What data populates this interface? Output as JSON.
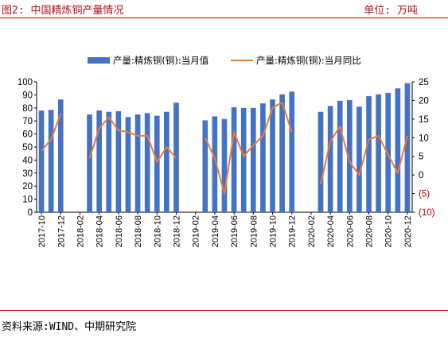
{
  "header": {
    "title": "图2: 中国精炼铜产量情况",
    "unit": "单位: 万吨"
  },
  "footer": {
    "source": "资料来源:WIND、中期研究院"
  },
  "colors": {
    "bar": "#4472c4",
    "line": "#ed7d31",
    "negative_tick": "#c00000",
    "rule": "#c00000"
  },
  "chart_data": {
    "type": "bar",
    "title": "",
    "xlabel": "",
    "ylabel": "",
    "legend_position": "top",
    "grid": false,
    "categories": [
      "2017-10",
      "2017-11",
      "2017-12",
      "2018-01",
      "2018-02",
      "2018-03",
      "2018-04",
      "2018-05",
      "2018-06",
      "2018-07",
      "2018-08",
      "2018-09",
      "2018-10",
      "2018-11",
      "2018-12",
      "2019-01",
      "2019-02",
      "2019-03",
      "2019-04",
      "2019-05",
      "2019-06",
      "2019-07",
      "2019-08",
      "2019-09",
      "2019-10",
      "2019-11",
      "2019-12",
      "2020-01",
      "2020-02",
      "2020-03",
      "2020-04",
      "2020-05",
      "2020-06",
      "2020-07",
      "2020-08",
      "2020-09",
      "2020-10",
      "2020-11",
      "2020-12"
    ],
    "x_tick_labels": [
      "2017-10",
      "2017-12",
      "2018-02",
      "2018-04",
      "2018-06",
      "2018-08",
      "2018-10",
      "2018-12",
      "2019-02",
      "2019-04",
      "2019-06",
      "2019-08",
      "2019-10",
      "2019-12",
      "2020-02",
      "2020-04",
      "2020-06",
      "2020-08",
      "2020-10",
      "2020-12"
    ],
    "y_left": {
      "ylim": [
        0,
        100
      ],
      "ticks": [
        "0",
        "10",
        "20",
        "30",
        "40",
        "50",
        "60",
        "70",
        "80",
        "90",
        "100"
      ]
    },
    "y_right": {
      "ylim": [
        -10,
        25
      ],
      "ticks": [
        {
          "value": 25,
          "label": "25"
        },
        {
          "value": 20,
          "label": "20"
        },
        {
          "value": 15,
          "label": "15"
        },
        {
          "value": 10,
          "label": "10"
        },
        {
          "value": 5,
          "label": "5"
        },
        {
          "value": 0,
          "label": "0"
        },
        {
          "value": -5,
          "label": "(5)"
        },
        {
          "value": -10,
          "label": "(10)"
        }
      ]
    },
    "series": [
      {
        "name": "产量:精炼铜(铜):当月值",
        "kind": "bar",
        "axis": "left",
        "values": [
          78,
          78.5,
          86.5,
          null,
          null,
          75,
          78,
          77,
          77.5,
          73,
          75,
          76,
          74,
          77,
          84,
          null,
          null,
          70.5,
          73.5,
          71.5,
          80.5,
          80,
          80,
          83.5,
          86.5,
          90.5,
          92.5,
          null,
          null,
          77,
          81.5,
          85.5,
          86,
          81,
          89,
          90.5,
          91.5,
          95,
          99
        ]
      },
      {
        "name": "产量:精炼铜(铜):当月同比",
        "kind": "line",
        "axis": "right",
        "values": [
          6.5,
          9.5,
          16.5,
          null,
          null,
          4.5,
          12.5,
          15.5,
          12,
          11.5,
          10.5,
          10.5,
          3.5,
          7.5,
          4.5,
          null,
          null,
          10,
          4.5,
          -5,
          11.5,
          5,
          8,
          10.5,
          18,
          19.5,
          11.5,
          null,
          null,
          -2.5,
          9,
          13,
          3.5,
          0,
          9.5,
          10.5,
          5.5,
          0.5,
          10.5
        ]
      }
    ]
  }
}
